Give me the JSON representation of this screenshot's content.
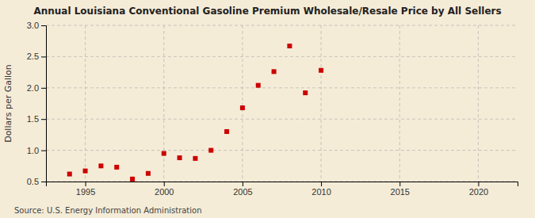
{
  "chart_data": {
    "type": "scatter",
    "title": "Annual Louisiana Conventional Gasoline Premium Wholesale/Resale Price by All Sellers",
    "ylabel": "Dollars per Gallon",
    "annotations": [
      "Source: U.S. Energy Information Administration"
    ],
    "x": [
      1994,
      1995,
      1996,
      1997,
      1998,
      1999,
      2000,
      2001,
      2002,
      2003,
      2004,
      2005,
      2006,
      2007,
      2008,
      2009,
      2010
    ],
    "values": [
      0.62,
      0.67,
      0.75,
      0.73,
      0.54,
      0.63,
      0.95,
      0.88,
      0.87,
      1.0,
      1.3,
      1.68,
      2.04,
      2.26,
      2.67,
      1.92,
      2.28
    ],
    "color": "#cc0000",
    "marker": "square",
    "xlim": [
      1992.5,
      2022.5
    ],
    "ylim": [
      0.5,
      3.0
    ],
    "xticks": [
      1995,
      2000,
      2005,
      2010,
      2015,
      2020
    ],
    "yticks": [
      0.5,
      {
        "value": 1.0,
        "label": "1.0"
      },
      1.5,
      {
        "value": 2.0,
        "label": "2.0"
      },
      2.5,
      {
        "value": 3.0,
        "label": "3.0"
      }
    ],
    "grid": true
  }
}
